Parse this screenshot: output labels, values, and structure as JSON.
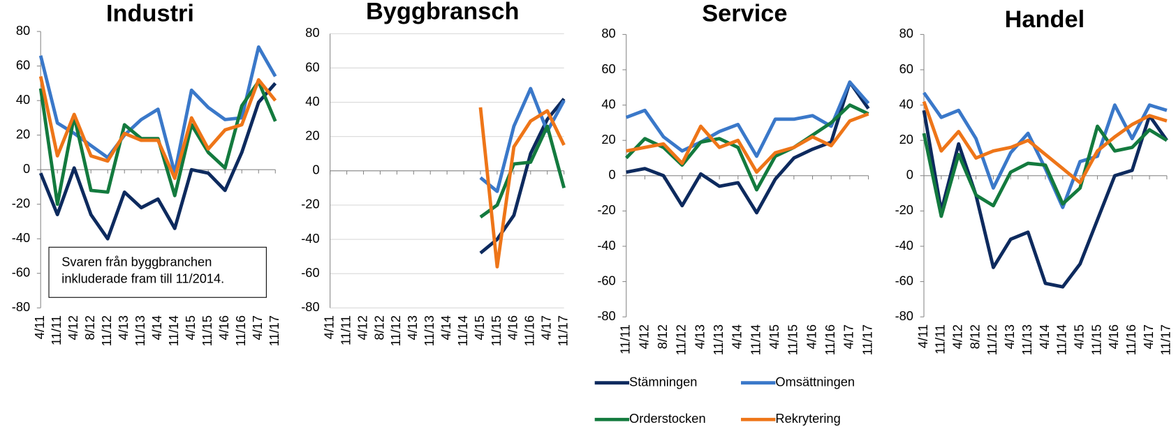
{
  "chart_data": [
    {
      "type": "line",
      "title": "Industri",
      "categories": [
        "4/11",
        "11/11",
        "4/12",
        "8/12",
        "11/12",
        "4/13",
        "11/13",
        "4/14",
        "11/14",
        "4/15",
        "11/15",
        "4/16",
        "11/16",
        "4/17",
        "11/17"
      ],
      "series": [
        {
          "name": "Stämningen",
          "color": "#0d2a5e",
          "values": [
            -2,
            -26,
            1,
            -26,
            -40,
            -13,
            -22,
            -17,
            -34,
            0,
            -2,
            -12,
            10,
            39,
            50
          ]
        },
        {
          "name": "Omsättningen",
          "color": "#3a78c9",
          "values": [
            66,
            27,
            21,
            14,
            7,
            20,
            29,
            35,
            -2,
            46,
            36,
            29,
            30,
            71,
            54
          ]
        },
        {
          "name": "Orderstocken",
          "color": "#137a3e",
          "values": [
            47,
            -20,
            31,
            -12,
            -13,
            26,
            18,
            18,
            -15,
            26,
            10,
            1,
            37,
            51,
            28
          ]
        },
        {
          "name": "Rekrytering",
          "color": "#ee7518",
          "values": [
            54,
            8,
            32,
            8,
            5,
            21,
            17,
            17,
            -5,
            30,
            12,
            23,
            26,
            52,
            40
          ]
        }
      ],
      "ylim": [
        -80,
        80
      ],
      "yticks": [
        -80,
        -60,
        -40,
        -20,
        0,
        20,
        40,
        60,
        80
      ],
      "grid": false,
      "annotation_lines": [
        "Svaren från byggbranchen",
        "inkluderade  fram till 11/2014."
      ]
    },
    {
      "type": "line",
      "title": "Byggbransch",
      "categories": [
        "4/11",
        "11/11",
        "4/12",
        "8/12",
        "11/12",
        "4/13",
        "11/13",
        "4/14",
        "11/14",
        "4/15",
        "11/15",
        "4/16",
        "11/16",
        "4/17",
        "11/17"
      ],
      "series": [
        {
          "name": "Stämningen",
          "color": "#0d2a5e",
          "values": [
            null,
            null,
            null,
            null,
            null,
            null,
            null,
            null,
            null,
            -48,
            -40,
            -26,
            10,
            30,
            42
          ]
        },
        {
          "name": "Omsättningen",
          "color": "#3a78c9",
          "values": [
            null,
            null,
            null,
            null,
            null,
            null,
            null,
            null,
            null,
            -4,
            -12,
            26,
            48,
            23,
            41
          ]
        },
        {
          "name": "Orderstocken",
          "color": "#137a3e",
          "values": [
            null,
            null,
            null,
            null,
            null,
            null,
            null,
            null,
            null,
            -27,
            -20,
            4,
            5,
            26,
            -10
          ]
        },
        {
          "name": "Rekrytering",
          "color": "#ee7518",
          "values": [
            null,
            null,
            null,
            null,
            null,
            null,
            null,
            null,
            null,
            37,
            -56,
            14,
            29,
            35,
            15
          ]
        }
      ],
      "ylim": [
        -80,
        80
      ],
      "yticks": [
        -80,
        -60,
        -40,
        -20,
        0,
        20,
        40,
        60,
        80
      ],
      "grid": true
    },
    {
      "type": "line",
      "title": "Service",
      "categories": [
        "11/11",
        "4/12",
        "8/12",
        "11/12",
        "4/13",
        "11/13",
        "4/14",
        "11/14",
        "4/15",
        "11/15",
        "4/16",
        "11/16",
        "4/17",
        "11/17"
      ],
      "series": [
        {
          "name": "Stämningen",
          "color": "#0d2a5e",
          "values": [
            2,
            4,
            0,
            -17,
            1,
            -6,
            -4,
            -21,
            -2,
            10,
            15,
            19,
            53,
            38
          ]
        },
        {
          "name": "Omsättningen",
          "color": "#3a78c9",
          "values": [
            33,
            37,
            22,
            14,
            19,
            25,
            29,
            11,
            32,
            32,
            34,
            28,
            53,
            41
          ]
        },
        {
          "name": "Orderstocken",
          "color": "#137a3e",
          "values": [
            10,
            21,
            16,
            6,
            19,
            21,
            16,
            -8,
            11,
            16,
            23,
            30,
            40,
            35
          ]
        },
        {
          "name": "Rekrytering",
          "color": "#ee7518",
          "values": [
            14,
            16,
            18,
            7,
            28,
            16,
            20,
            2,
            13,
            16,
            22,
            17,
            31,
            35
          ]
        }
      ],
      "ylim": [
        -80,
        80
      ],
      "yticks": [
        -80,
        -60,
        -40,
        -20,
        0,
        20,
        40,
        60,
        80
      ],
      "grid": false,
      "legend": "bottom"
    },
    {
      "type": "line",
      "title": "Handel",
      "categories": [
        "4/11",
        "11/11",
        "4/12",
        "8/12",
        "11/12",
        "4/13",
        "11/13",
        "4/14",
        "11/14",
        "4/15",
        "11/15",
        "4/16",
        "11/16",
        "4/17",
        "11/17"
      ],
      "series": [
        {
          "name": "Stämningen",
          "color": "#0d2a5e",
          "values": [
            37,
            -20,
            18,
            -11,
            -52,
            -36,
            -32,
            -61,
            -63,
            -50,
            -25,
            0,
            3,
            34,
            20
          ]
        },
        {
          "name": "Omsättningen",
          "color": "#3a78c9",
          "values": [
            47,
            33,
            37,
            21,
            -7,
            13,
            24,
            4,
            -18,
            8,
            11,
            40,
            21,
            40,
            37
          ]
        },
        {
          "name": "Orderstocken",
          "color": "#137a3e",
          "values": [
            24,
            -23,
            12,
            -11,
            -17,
            2,
            7,
            6,
            -16,
            -7,
            28,
            14,
            16,
            26,
            20
          ]
        },
        {
          "name": "Rekrytering",
          "color": "#ee7518",
          "values": [
            42,
            14,
            25,
            10,
            14,
            16,
            20,
            12,
            4,
            -4,
            14,
            22,
            29,
            34,
            31
          ]
        }
      ],
      "ylim": [
        -80,
        80
      ],
      "yticks": [
        -80,
        -60,
        -40,
        -20,
        0,
        20,
        40,
        60,
        80
      ],
      "grid": false
    }
  ]
}
